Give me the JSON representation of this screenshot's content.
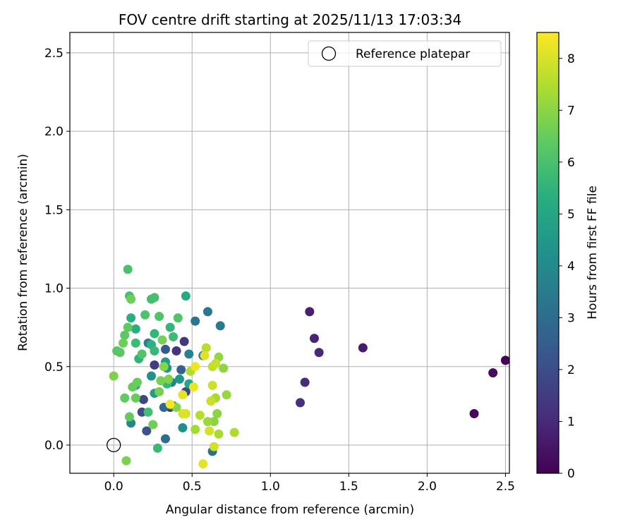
{
  "chart_data": {
    "type": "scatter",
    "title": "FOV centre drift starting at 2025/11/13 17:03:34",
    "xlabel": "Angular distance from reference (arcmin)",
    "ylabel": "Rotation from reference (arcmin)",
    "xlim": [
      -0.28,
      2.525
    ],
    "ylim": [
      -0.18,
      2.63
    ],
    "xticks": [
      0.0,
      0.5,
      1.0,
      1.5,
      2.0,
      2.5
    ],
    "yticks": [
      0.0,
      0.5,
      1.0,
      1.5,
      2.0,
      2.5
    ],
    "xtick_labels": [
      "0.0",
      "0.5",
      "1.0",
      "1.5",
      "2.0",
      "2.5"
    ],
    "ytick_labels": [
      "0.0",
      "0.5",
      "1.0",
      "1.5",
      "2.0",
      "2.5"
    ],
    "grid": true,
    "legend": {
      "position": "top-right",
      "entries": [
        "Reference platepar"
      ]
    },
    "reference_point": {
      "x": 0.0,
      "y": 0.0
    },
    "colorbar": {
      "label": "Hours from first FF file",
      "range": [
        0,
        8.5
      ],
      "ticks": [
        0,
        1,
        2,
        3,
        4,
        5,
        6,
        7,
        8
      ],
      "tick_labels": [
        "0",
        "1",
        "2",
        "3",
        "4",
        "5",
        "6",
        "7",
        "8"
      ],
      "colormap": "viridis"
    },
    "points": [
      {
        "x": 2.5,
        "y": 0.54,
        "h": 0.05
      },
      {
        "x": 2.3,
        "y": 0.2,
        "h": 0.15
      },
      {
        "x": 2.42,
        "y": 0.46,
        "h": 0.25
      },
      {
        "x": 1.59,
        "y": 0.62,
        "h": 0.6
      },
      {
        "x": 1.25,
        "y": 0.85,
        "h": 0.75
      },
      {
        "x": 1.28,
        "y": 0.68,
        "h": 0.85
      },
      {
        "x": 1.31,
        "y": 0.59,
        "h": 0.95
      },
      {
        "x": 1.22,
        "y": 0.4,
        "h": 1.05
      },
      {
        "x": 1.19,
        "y": 0.27,
        "h": 1.15
      },
      {
        "x": 0.4,
        "y": 0.6,
        "h": 1.3
      },
      {
        "x": 0.45,
        "y": 0.66,
        "h": 1.35
      },
      {
        "x": 0.26,
        "y": 0.51,
        "h": 1.5
      },
      {
        "x": 0.36,
        "y": 0.24,
        "h": 1.7
      },
      {
        "x": 0.19,
        "y": 0.29,
        "h": 1.8
      },
      {
        "x": 0.46,
        "y": 0.34,
        "h": 1.9
      },
      {
        "x": 0.18,
        "y": 0.21,
        "h": 2.0
      },
      {
        "x": 0.21,
        "y": 0.09,
        "h": 2.2
      },
      {
        "x": 0.33,
        "y": 0.61,
        "h": 2.4
      },
      {
        "x": 0.43,
        "y": 0.48,
        "h": 2.6
      },
      {
        "x": 0.32,
        "y": 0.24,
        "h": 2.8
      },
      {
        "x": 0.33,
        "y": 0.04,
        "h": 3.0
      },
      {
        "x": 0.63,
        "y": -0.04,
        "h": 3.1
      },
      {
        "x": 0.57,
        "y": 0.57,
        "h": 3.2
      },
      {
        "x": 0.52,
        "y": 0.79,
        "h": 3.3
      },
      {
        "x": 0.6,
        "y": 0.85,
        "h": 3.4
      },
      {
        "x": 0.68,
        "y": 0.76,
        "h": 3.5
      },
      {
        "x": 0.37,
        "y": 0.4,
        "h": 3.6
      },
      {
        "x": 0.22,
        "y": 0.65,
        "h": 3.7
      },
      {
        "x": 0.48,
        "y": 0.58,
        "h": 3.8
      },
      {
        "x": 0.11,
        "y": 0.14,
        "h": 3.9
      },
      {
        "x": 0.38,
        "y": 0.25,
        "h": 4.0
      },
      {
        "x": 0.44,
        "y": 0.11,
        "h": 4.2
      },
      {
        "x": 0.24,
        "y": 0.44,
        "h": 4.3
      },
      {
        "x": 0.34,
        "y": 0.49,
        "h": 4.4
      },
      {
        "x": 0.42,
        "y": 0.42,
        "h": 4.5
      },
      {
        "x": 0.33,
        "y": 0.53,
        "h": 4.6
      },
      {
        "x": 0.26,
        "y": 0.33,
        "h": 4.7
      },
      {
        "x": 0.14,
        "y": 0.38,
        "h": 4.8
      },
      {
        "x": 0.48,
        "y": 0.39,
        "h": 5.0
      },
      {
        "x": 0.46,
        "y": 0.95,
        "h": 5.1
      },
      {
        "x": 0.14,
        "y": 0.74,
        "h": 5.2
      },
      {
        "x": 0.11,
        "y": 0.81,
        "h": 5.3
      },
      {
        "x": 0.24,
        "y": 0.64,
        "h": 5.4
      },
      {
        "x": 0.16,
        "y": 0.55,
        "h": 5.5
      },
      {
        "x": 0.36,
        "y": 0.75,
        "h": 5.55
      },
      {
        "x": 0.26,
        "y": 0.71,
        "h": 5.6
      },
      {
        "x": 0.34,
        "y": 0.39,
        "h": 5.65
      },
      {
        "x": 0.26,
        "y": 0.6,
        "h": 5.7
      },
      {
        "x": 0.28,
        "y": -0.02,
        "h": 5.75
      },
      {
        "x": 0.14,
        "y": 0.65,
        "h": 5.8
      },
      {
        "x": 0.38,
        "y": 0.69,
        "h": 5.85
      },
      {
        "x": 0.22,
        "y": 0.21,
        "h": 5.9
      },
      {
        "x": 0.24,
        "y": 0.93,
        "h": 5.95
      },
      {
        "x": 0.26,
        "y": 0.94,
        "h": 6.0
      },
      {
        "x": 0.1,
        "y": 0.95,
        "h": 6.0
      },
      {
        "x": 0.09,
        "y": 1.12,
        "h": 6.05
      },
      {
        "x": 0.2,
        "y": 0.83,
        "h": 6.1
      },
      {
        "x": 0.29,
        "y": 0.82,
        "h": 6.1
      },
      {
        "x": 0.41,
        "y": 0.81,
        "h": 6.15
      },
      {
        "x": 0.18,
        "y": 0.58,
        "h": 6.2
      },
      {
        "x": 0.02,
        "y": 0.6,
        "h": 6.25
      },
      {
        "x": 0.04,
        "y": 0.59,
        "h": 6.3
      },
      {
        "x": 0.07,
        "y": 0.7,
        "h": 6.3
      },
      {
        "x": 0.09,
        "y": 0.75,
        "h": 6.35
      },
      {
        "x": 0.07,
        "y": 0.3,
        "h": 6.4
      },
      {
        "x": 0.1,
        "y": 0.18,
        "h": 6.45
      },
      {
        "x": 0.12,
        "y": 0.37,
        "h": 6.5
      },
      {
        "x": 0.14,
        "y": 0.3,
        "h": 6.5
      },
      {
        "x": 0.15,
        "y": 0.4,
        "h": 6.55
      },
      {
        "x": 0.06,
        "y": 0.65,
        "h": 6.6
      },
      {
        "x": 0.11,
        "y": 0.93,
        "h": 6.6
      },
      {
        "x": 0.25,
        "y": 0.13,
        "h": 6.65
      },
      {
        "x": 0.29,
        "y": 0.34,
        "h": 6.7
      },
      {
        "x": 0.31,
        "y": 0.67,
        "h": 6.7
      },
      {
        "x": 0.3,
        "y": 0.41,
        "h": 6.75
      },
      {
        "x": 0.0,
        "y": 0.44,
        "h": 6.8
      },
      {
        "x": 0.08,
        "y": -0.1,
        "h": 6.8
      },
      {
        "x": 0.35,
        "y": 0.42,
        "h": 6.85
      },
      {
        "x": 0.4,
        "y": 0.24,
        "h": 6.9
      },
      {
        "x": 0.32,
        "y": 0.5,
        "h": 6.9
      },
      {
        "x": 0.64,
        "y": 0.15,
        "h": 6.95
      },
      {
        "x": 0.66,
        "y": 0.2,
        "h": 7.0
      },
      {
        "x": 0.7,
        "y": 0.49,
        "h": 7.05
      },
      {
        "x": 0.67,
        "y": 0.56,
        "h": 7.1
      },
      {
        "x": 0.72,
        "y": 0.32,
        "h": 7.15
      },
      {
        "x": 0.6,
        "y": 0.15,
        "h": 7.2
      },
      {
        "x": 0.52,
        "y": 0.1,
        "h": 7.3
      },
      {
        "x": 0.65,
        "y": 0.3,
        "h": 7.35
      },
      {
        "x": 0.67,
        "y": 0.07,
        "h": 7.4
      },
      {
        "x": 0.77,
        "y": 0.08,
        "h": 7.45
      },
      {
        "x": 0.49,
        "y": 0.47,
        "h": 7.5
      },
      {
        "x": 0.55,
        "y": 0.19,
        "h": 7.55
      },
      {
        "x": 0.59,
        "y": 0.62,
        "h": 7.6
      },
      {
        "x": 0.63,
        "y": 0.5,
        "h": 7.7
      },
      {
        "x": 0.65,
        "y": 0.52,
        "h": 7.75
      },
      {
        "x": 0.62,
        "y": 0.28,
        "h": 7.8
      },
      {
        "x": 0.63,
        "y": 0.38,
        "h": 7.85
      },
      {
        "x": 0.64,
        "y": -0.01,
        "h": 7.9
      },
      {
        "x": 0.61,
        "y": 0.09,
        "h": 7.95
      },
      {
        "x": 0.46,
        "y": 0.2,
        "h": 8.0
      },
      {
        "x": 0.44,
        "y": 0.2,
        "h": 8.05
      },
      {
        "x": 0.58,
        "y": 0.57,
        "h": 8.1
      },
      {
        "x": 0.57,
        "y": -0.12,
        "h": 8.15
      },
      {
        "x": 0.44,
        "y": 0.32,
        "h": 8.2
      },
      {
        "x": 0.51,
        "y": 0.37,
        "h": 8.25
      },
      {
        "x": 0.52,
        "y": 0.5,
        "h": 8.3
      },
      {
        "x": 0.36,
        "y": 0.26,
        "h": 8.35
      }
    ]
  }
}
